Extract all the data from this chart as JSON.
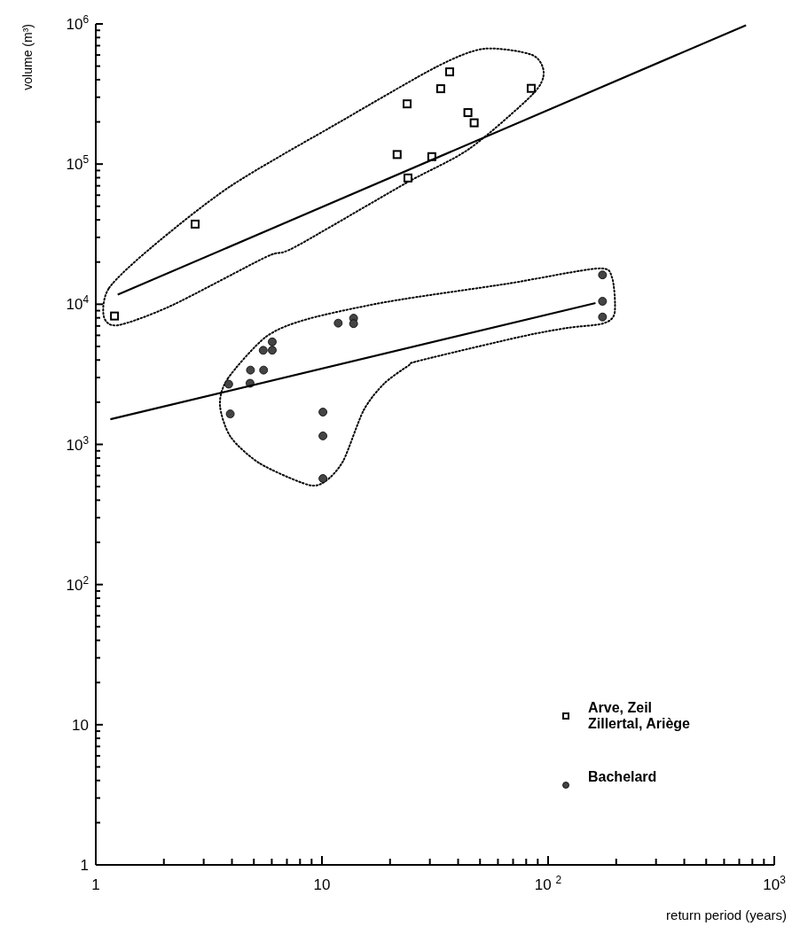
{
  "chart_data": {
    "type": "scatter",
    "xlabel": "return period (years)",
    "ylabel": "volume (m³)",
    "log": "xy",
    "legend": "bottom right",
    "grid": false,
    "xlim": [
      1,
      1000
    ],
    "ylim": [
      1,
      1000000
    ],
    "xticks": [
      1,
      {
        "value": 2,
        "label": null
      },
      {
        "value": 3,
        "label": null
      },
      {
        "value": 4,
        "label": null
      },
      {
        "value": 5,
        "label": null
      },
      {
        "value": 6,
        "label": null
      },
      {
        "value": 7,
        "label": null
      },
      {
        "value": 8,
        "label": null
      },
      {
        "value": 9,
        "label": null
      },
      10,
      {
        "value": 20,
        "label": null
      },
      {
        "value": 30,
        "label": null
      },
      {
        "value": 40,
        "label": null
      },
      {
        "value": 50,
        "label": null
      },
      {
        "value": 60,
        "label": null
      },
      {
        "value": 70,
        "label": null
      },
      {
        "value": 80,
        "label": null
      },
      {
        "value": 90,
        "label": null
      },
      {
        "value": 100,
        "label": "10 $^{2}$"
      },
      {
        "value": 200,
        "label": null
      },
      {
        "value": 300,
        "label": null
      },
      {
        "value": 400,
        "label": null
      },
      {
        "value": 500,
        "label": null
      },
      {
        "value": 600,
        "label": null
      },
      {
        "value": 700,
        "label": null
      },
      {
        "value": 800,
        "label": null
      },
      {
        "value": 900,
        "label": null
      },
      {
        "value": 1000,
        "label": "10$^{3}$"
      }
    ],
    "yticks": [
      1,
      {
        "value": 2,
        "label": null
      },
      {
        "value": 3,
        "label": null
      },
      {
        "value": 4,
        "label": null
      },
      {
        "value": 5,
        "label": null
      },
      {
        "value": 6,
        "label": null
      },
      {
        "value": 7,
        "label": null
      },
      {
        "value": 8,
        "label": null
      },
      {
        "value": 9,
        "label": null
      },
      10,
      {
        "value": 20,
        "label": null
      },
      {
        "value": 30,
        "label": null
      },
      {
        "value": 40,
        "label": null
      },
      {
        "value": 50,
        "label": null
      },
      {
        "value": 60,
        "label": null
      },
      {
        "value": 70,
        "label": null
      },
      {
        "value": 80,
        "label": null
      },
      {
        "value": 90,
        "label": null
      },
      {
        "value": 100,
        "label": "10$^{2}$"
      },
      {
        "value": 200,
        "label": null
      },
      {
        "value": 300,
        "label": null
      },
      {
        "value": 400,
        "label": null
      },
      {
        "value": 500,
        "label": null
      },
      {
        "value": 600,
        "label": null
      },
      {
        "value": 700,
        "label": null
      },
      {
        "value": 800,
        "label": null
      },
      {
        "value": 900,
        "label": null
      },
      {
        "value": 1000,
        "label": "10$^{3}$"
      },
      {
        "value": 2000,
        "label": null
      },
      {
        "value": 3000,
        "label": null
      },
      {
        "value": 4000,
        "label": null
      },
      {
        "value": 5000,
        "label": null
      },
      {
        "value": 6000,
        "label": null
      },
      {
        "value": 7000,
        "label": null
      },
      {
        "value": 8000,
        "label": null
      },
      {
        "value": 9000,
        "label": null
      },
      {
        "value": 10000,
        "label": "10$^{4}$"
      },
      {
        "value": 20000,
        "label": null
      },
      {
        "value": 30000,
        "label": null
      },
      {
        "value": 40000,
        "label": null
      },
      {
        "value": 50000,
        "label": null
      },
      {
        "value": 60000,
        "label": null
      },
      {
        "value": 70000,
        "label": null
      },
      {
        "value": 80000,
        "label": null
      },
      {
        "value": 90000,
        "label": null
      },
      {
        "value": 100000,
        "label": "10$^{5}$"
      },
      {
        "value": 200000,
        "label": null
      },
      {
        "value": 300000,
        "label": null
      },
      {
        "value": 400000,
        "label": null
      },
      {
        "value": 500000,
        "label": null
      },
      {
        "value": 600000,
        "label": null
      },
      {
        "value": 700000,
        "label": null
      },
      {
        "value": 800000,
        "label": null
      },
      {
        "value": 900000,
        "label": null
      },
      {
        "value": 1000000,
        "label": "10$^{6}$"
      }
    ],
    "series": [
      {
        "name": "Arve, Zeil\nZillertal, Ariège",
        "color": "#000000",
        "marker": "square",
        "x": [
          1.21,
          2.75,
          36.7,
          33.5,
          23.8,
          44.2,
          47.1,
          84.2,
          21.5,
          30.6,
          24
        ],
        "values": [
          8240,
          37300,
          455000,
          345000,
          269000,
          233000,
          197000,
          347000,
          117000,
          113000,
          79600
        ]
      },
      {
        "name": "Bachelard",
        "color": "#444444",
        "marker": "circle",
        "x": [
          3.87,
          4.81,
          4.83,
          5.52,
          5.5,
          6.03,
          6.03,
          3.93,
          10.1,
          10.1,
          10.1,
          11.8,
          13.8,
          13.8,
          174,
          174,
          174
        ],
        "values": [
          2690,
          2730,
          3390,
          3390,
          4690,
          4700,
          5390,
          1650,
          1700,
          1150,
          571,
          7330,
          7950,
          7270,
          16200,
          10500,
          8110
        ]
      },
      {
        "type": "line",
        "color": "#000000",
        "marker": "none",
        "line_style": "solid",
        "x": [
          1.25,
          750
        ],
        "values": [
          11700,
          980000
        ]
      },
      {
        "type": "line",
        "color": "#000000",
        "marker": "none",
        "line_style": "solid",
        "x": [
          1.16,
          162
        ],
        "values": [
          1510,
          10200
        ]
      }
    ]
  }
}
